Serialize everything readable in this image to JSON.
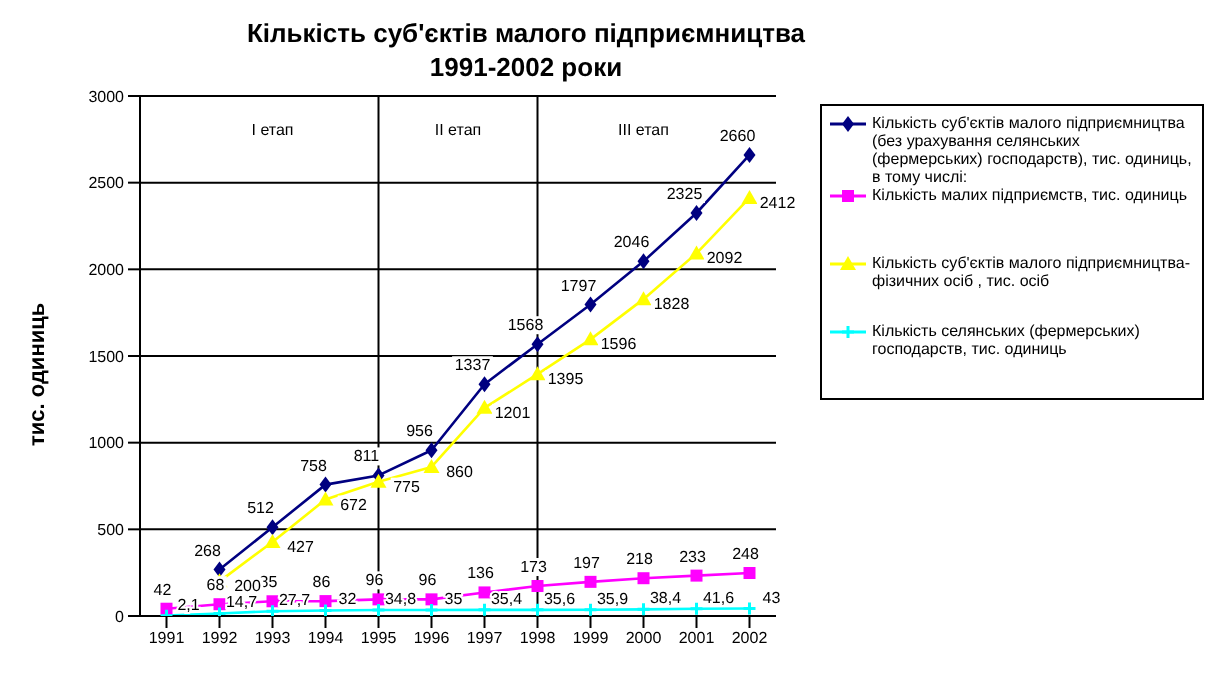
{
  "chart_data": {
    "type": "line",
    "title": "Кількість суб'єктів малого підприємництва\n1991-2002 роки",
    "ylabel": "тис. одиниць",
    "categories": [
      "1991",
      "1992",
      "1993",
      "1994",
      "1995",
      "1996",
      "1997",
      "1998",
      "1999",
      "2000",
      "2001",
      "2002"
    ],
    "series": [
      {
        "name": "Кількість суб'єктів малого підприємництва (без урахування селянських (фермерських) господарств), тис. одиниць, в тому числі:",
        "color": "#000080",
        "marker": "diamond",
        "values": [
          null,
          268,
          512,
          758,
          811,
          956,
          1337,
          1568,
          1797,
          2046,
          2325,
          2660
        ]
      },
      {
        "name": "Кількість малих підприємств, тис. одиниць",
        "color": "#ff00ff",
        "marker": "square",
        "values": [
          42,
          68,
          85,
          86,
          96,
          96,
          136,
          173,
          197,
          218,
          233,
          248
        ]
      },
      {
        "name": "Кількість суб'єктів малого підприємництва-фізичних осіб , тис. осіб",
        "color": "#ffff00",
        "marker": "triangle",
        "values": [
          null,
          200,
          427,
          672,
          775,
          860,
          1201,
          1395,
          1596,
          1828,
          2092,
          2412
        ]
      },
      {
        "name": "Кількість селянських (фермерських) господарств, тис. одиниць",
        "color": "#00ffff",
        "marker": "cross",
        "values": [
          2.1,
          14.7,
          27.7,
          32,
          34.8,
          35,
          35.4,
          35.6,
          35.9,
          38.4,
          41.6,
          43
        ],
        "value_labels": [
          "2,1",
          "14,7",
          "27,7",
          "32",
          "34,8",
          "35",
          "35,4",
          "35,6",
          "35,9",
          "38,4",
          "41,6",
          "43"
        ]
      }
    ],
    "ylim": [
      0,
      3000
    ],
    "yticks": [
      0,
      500,
      1000,
      1500,
      2000,
      2500,
      3000
    ],
    "grid": "y",
    "legend": "right",
    "data_labels": true,
    "ref_lines": [
      {
        "axis": "x",
        "value": "1995",
        "color": "#000000"
      },
      {
        "axis": "x",
        "value": "1998",
        "color": "#000000"
      }
    ],
    "annotations": [
      "I етап",
      "II етап",
      "III етап"
    ]
  }
}
